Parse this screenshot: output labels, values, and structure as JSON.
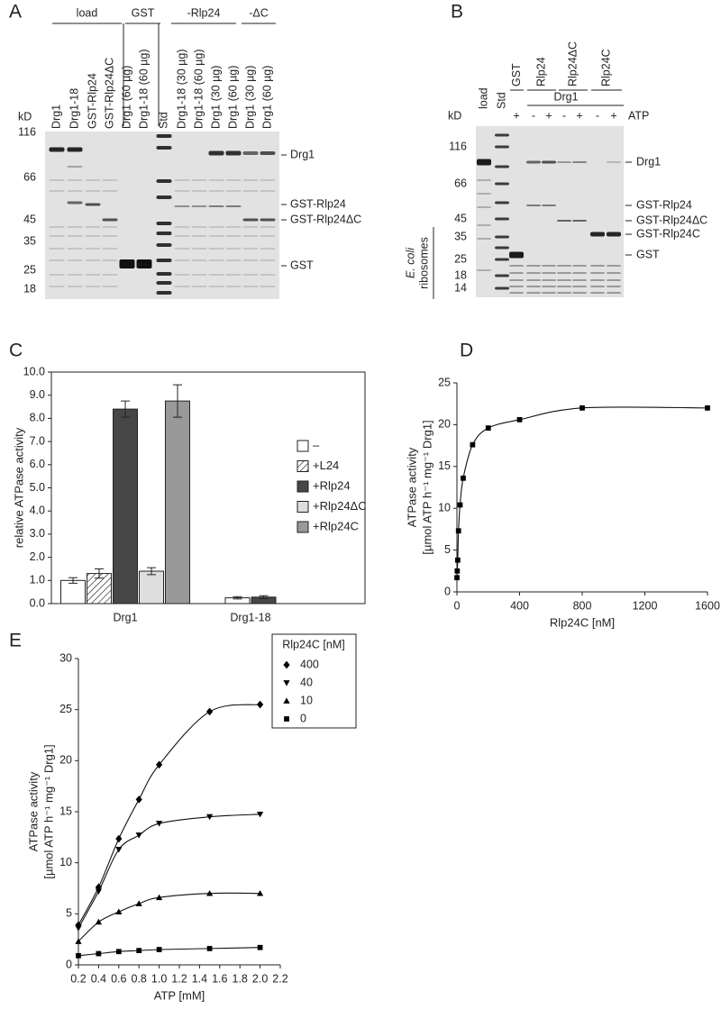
{
  "panel_labels": [
    "A",
    "B",
    "C",
    "D",
    "E"
  ],
  "gel_a": {
    "groups": [
      "load",
      "GST",
      "-Rlp24",
      "-ΔC"
    ],
    "lanes": [
      "Drg1",
      "Drg1-18",
      "GST-Rlp24",
      "GST-Rlp24ΔC",
      "Drg1 (60 µg)",
      "Drg1-18 (60 µg)",
      "Std",
      "Drg1-18 (30 µg)",
      "Drg1-18 (60 µg)",
      "Drg1 (30 µg)",
      "Drg1 (60 µg)",
      "Drg1 (30 µg)",
      "Drg1 (60 µg)"
    ],
    "kd": "kD",
    "markers": [
      116,
      66,
      45,
      35,
      25,
      18
    ],
    "band_labels": [
      "Drg1",
      "GST-Rlp24",
      "GST-Rlp24ΔC",
      "GST"
    ]
  },
  "gel_b": {
    "lanes": [
      "load",
      "Std"
    ],
    "groups": [
      "GST",
      "Rlp24",
      "Rlp24ΔC",
      "Rlp24C"
    ],
    "protein": "Drg1",
    "atp": [
      "+",
      "-",
      "+",
      "-",
      "+",
      "-",
      "+"
    ],
    "atp_label": "ATP",
    "kd": "kD",
    "markers": [
      116,
      66,
      45,
      35,
      25,
      18,
      14
    ],
    "band_labels": [
      "Drg1",
      "GST-Rlp24",
      "GST-Rlp24ΔC",
      "GST-Rlp24C",
      "GST"
    ],
    "side_label": [
      "E. coli",
      "ribosomes"
    ]
  },
  "chart_data": [
    {
      "type": "bar",
      "y_label": "relative ATPase activity",
      "categories": [
        "Drg1",
        "Drg1-18"
      ],
      "series": [
        {
          "name": "–",
          "color": "#ffffff",
          "values": [
            1.0,
            0.25
          ],
          "errors": [
            0.12,
            0.05
          ]
        },
        {
          "name": "+L24",
          "color": "#ffffff",
          "hatch": true,
          "values": [
            1.3,
            null
          ],
          "errors": [
            0.2,
            null
          ]
        },
        {
          "name": "+Rlp24",
          "color": "#474747",
          "values": [
            8.4,
            0.28
          ],
          "errors": [
            0.35,
            0.06
          ]
        },
        {
          "name": "+Rlp24ΔC",
          "color": "#dedede",
          "values": [
            1.4,
            null
          ],
          "errors": [
            0.15,
            null
          ]
        },
        {
          "name": "+Rlp24C",
          "color": "#999999",
          "values": [
            8.75,
            null
          ],
          "errors": [
            0.7,
            null
          ]
        }
      ],
      "ylim": [
        0,
        10
      ],
      "yticks": [
        {
          "value": 0,
          "label": "0.0"
        },
        {
          "value": 1,
          "label": "1.0"
        },
        {
          "value": 2,
          "label": "2.0"
        },
        {
          "value": 3,
          "label": "3.0"
        },
        {
          "value": 4,
          "label": "4.0"
        },
        {
          "value": 5,
          "label": "5.0"
        },
        {
          "value": 6,
          "label": "6.0"
        },
        {
          "value": 7,
          "label": "7.0"
        },
        {
          "value": 8,
          "label": "8.0"
        },
        {
          "value": 9,
          "label": "9.0"
        },
        {
          "value": 10,
          "label": "10.0"
        }
      ],
      "legend": "right"
    },
    {
      "type": "scatter",
      "x_label": "Rlp24C [nM]",
      "y_label": [
        "ATPase activity",
        "[µmol ATP h⁻¹ mg⁻¹ Drg1]"
      ],
      "x": [
        0,
        2,
        5,
        10,
        20,
        40,
        100,
        200,
        400,
        800,
        1600
      ],
      "series": [
        {
          "color": "#000000",
          "marker": "square",
          "values": [
            1.7,
            2.5,
            3.8,
            7.3,
            10.4,
            13.6,
            17.6,
            19.6,
            20.6,
            22.0,
            22.0
          ]
        }
      ],
      "xlim": [
        0,
        1600
      ],
      "xticks": [
        0,
        400,
        800,
        1200,
        1600
      ],
      "ylim": [
        0,
        25
      ],
      "yticks": [
        0,
        5,
        10,
        15,
        20,
        25
      ],
      "fit_line": true
    },
    {
      "type": "scatter",
      "x_label": "ATP [mM]",
      "y_label": [
        "ATPase activity",
        "[µmol ATP h⁻¹ mg⁻¹ Drg1]"
      ],
      "legend_title": "Rlp24C [nM]",
      "x": [
        0.2,
        0.4,
        0.6,
        0.8,
        1.0,
        1.5,
        2.0
      ],
      "series": [
        {
          "name": "400",
          "color": "#000000",
          "marker": "diamond",
          "values": [
            3.9,
            7.6,
            12.35,
            16.2,
            19.6,
            24.8,
            25.5
          ]
        },
        {
          "name": "40",
          "color": "#000000",
          "marker": "triangle-down",
          "values": [
            3.6,
            7.2,
            11.3,
            12.7,
            13.85,
            14.5,
            14.75
          ]
        },
        {
          "name": "10",
          "color": "#000000",
          "marker": "triangle",
          "values": [
            2.3,
            4.2,
            5.2,
            6.0,
            6.6,
            7.0,
            7.0
          ]
        },
        {
          "name": "0",
          "color": "#000000",
          "marker": "square",
          "values": [
            0.9,
            1.1,
            1.3,
            1.4,
            1.5,
            1.6,
            1.7
          ]
        }
      ],
      "xlim": [
        0.2,
        2.2
      ],
      "xticks": [
        0.2,
        0.4,
        0.6,
        0.8,
        {
          "value": 1.0,
          "label": "1.0"
        },
        1.2,
        1.4,
        1.6,
        1.8,
        {
          "value": 2.0,
          "label": "2.0"
        },
        2.2
      ],
      "ylim": [
        0,
        30
      ],
      "yticks": [
        0,
        5,
        10,
        15,
        20,
        25,
        30
      ],
      "fit_line": true
    }
  ]
}
